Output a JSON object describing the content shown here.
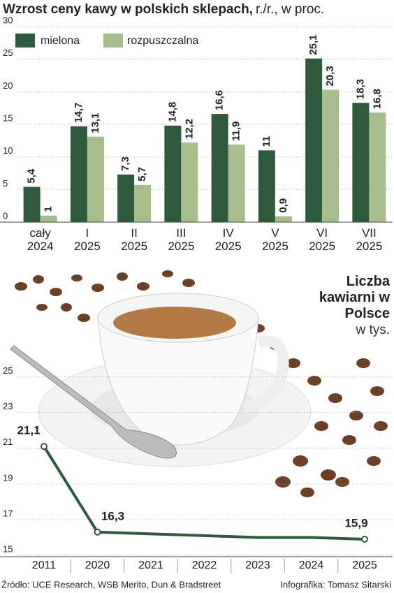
{
  "chart_data": [
    {
      "type": "bar",
      "title": "Wzrost ceny kawy w polskich sklepach,",
      "subtitle": "r./r., w proc.",
      "categories": [
        "cały 2024",
        "I 2025",
        "II 2025",
        "III 2025",
        "IV 2025",
        "V 2025",
        "VI 2025",
        "VII 2025"
      ],
      "series": [
        {
          "name": "mielona",
          "color": "#2c5a3b",
          "values": [
            5.4,
            14.7,
            7.3,
            14.8,
            16.6,
            11,
            25.1,
            18.3
          ],
          "value_labels": [
            "5,4",
            "14,7",
            "7,3",
            "14,8",
            "16,6",
            "11",
            "25,1",
            "18,3"
          ]
        },
        {
          "name": "rozpuszczalna",
          "color": "#a8bd8c",
          "values": [
            1,
            13.1,
            5.7,
            12.2,
            11.9,
            0.9,
            20.3,
            16.8
          ],
          "value_labels": [
            "1",
            "13,1",
            "5,7",
            "12,2",
            "11,9",
            "0,9",
            "20,3",
            "16,8"
          ]
        }
      ],
      "ylim": [
        0,
        30
      ],
      "yticks": [
        0,
        5,
        10,
        15,
        20,
        25,
        30
      ],
      "grid": true,
      "legend": "top-left"
    },
    {
      "type": "line",
      "title": "Liczba kawiarni w Polsce",
      "subtitle": "w tys.",
      "categories": [
        "2011",
        "2020",
        "2021",
        "2022",
        "2023",
        "2024",
        "2025"
      ],
      "series": [
        {
          "name": null,
          "color": "#2c5a3b",
          "values": [
            21.1,
            16.3,
            16.2,
            16.1,
            16.0,
            16.0,
            15.9
          ],
          "value_labels": [
            "21,1",
            "16,3",
            null,
            null,
            null,
            null,
            "15,9"
          ]
        }
      ],
      "ylim": [
        15,
        26
      ],
      "yticks": [
        15,
        17,
        19,
        21,
        23,
        25
      ],
      "grid": true
    }
  ],
  "footer": {
    "source": "Źródło: UCE Research, WSB Merito, Dun & Bradstreet",
    "credit": "Infografika: Tomasz Sitarski"
  }
}
